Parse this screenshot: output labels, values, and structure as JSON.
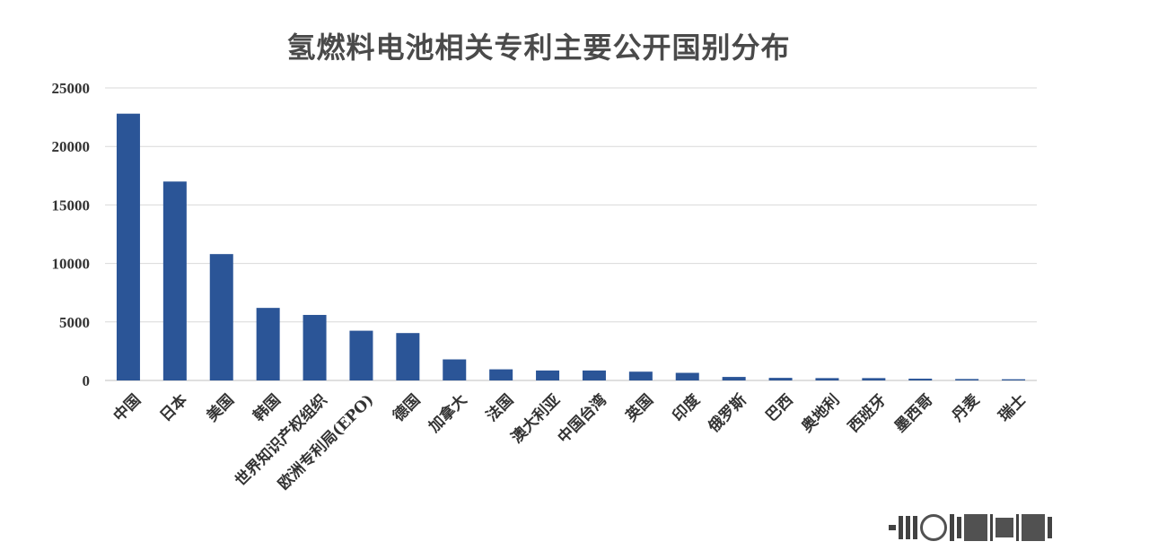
{
  "chart_data": {
    "type": "bar",
    "title": "氢燃料电池相关专利主要公开国别分布",
    "xlabel": "",
    "ylabel": "",
    "ylim": [
      0,
      25000
    ],
    "yticks": [
      0,
      5000,
      10000,
      15000,
      20000,
      25000
    ],
    "grid": true,
    "bar_color": "#2B5597",
    "categories": [
      "中国",
      "日本",
      "美国",
      "韩国",
      "世界知识产权组织",
      "欧洲专利局(EPO)",
      "德国",
      "加拿大",
      "法国",
      "澳大利亚",
      "中国台湾",
      "英国",
      "印度",
      "俄罗斯",
      "巴西",
      "奥地利",
      "西班牙",
      "墨西哥",
      "丹麦",
      "瑞士"
    ],
    "values": [
      22800,
      17000,
      10800,
      6200,
      5600,
      4250,
      4050,
      1800,
      950,
      850,
      850,
      750,
      650,
      300,
      220,
      200,
      200,
      150,
      120,
      100
    ]
  }
}
